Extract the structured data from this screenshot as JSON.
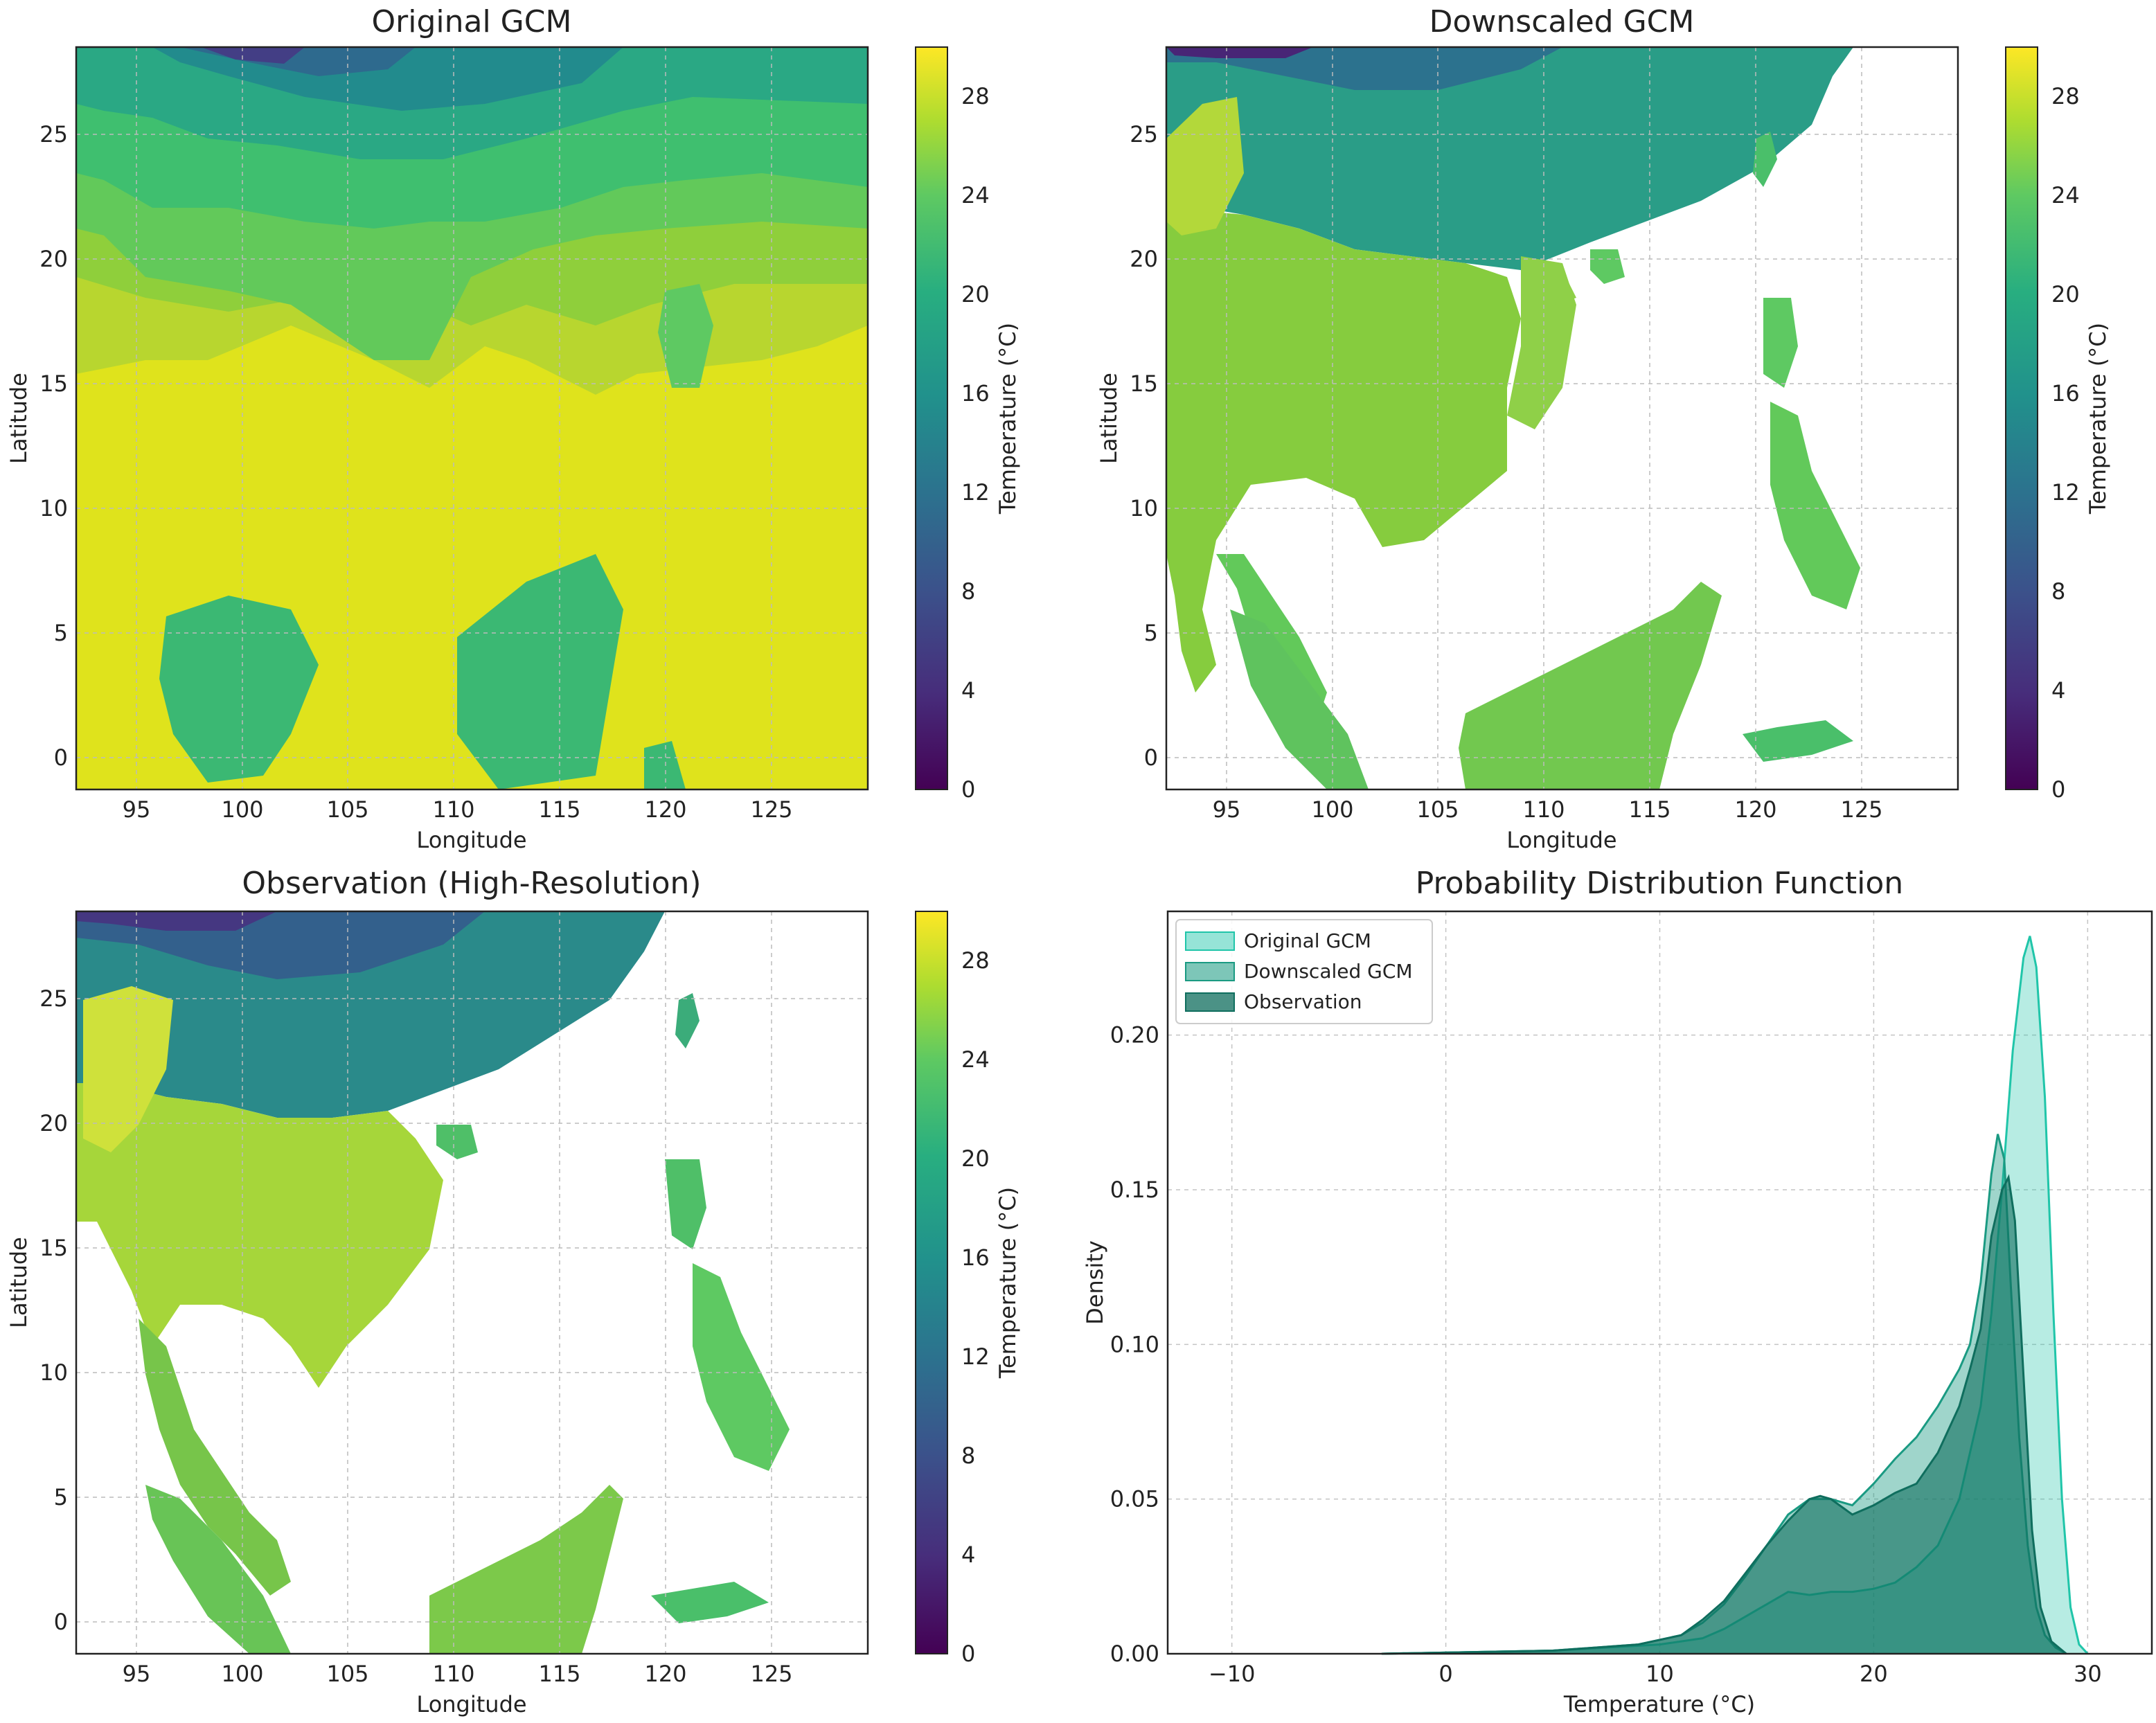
{
  "panels": {
    "original": {
      "title": "Original GCM",
      "xlabel": "Longitude",
      "ylabel": "Latitude"
    },
    "downscaled": {
      "title": "Downscaled GCM",
      "xlabel": "Longitude",
      "ylabel": "Latitude"
    },
    "observation": {
      "title": "Observation (High-Resolution)",
      "xlabel": "Longitude",
      "ylabel": "Latitude"
    }
  },
  "map_axes": {
    "xticks": [
      "95",
      "100",
      "105",
      "110",
      "115",
      "120",
      "125"
    ],
    "yticks": [
      "0",
      "5",
      "10",
      "15",
      "20",
      "25"
    ],
    "xlim": [
      92.2,
      129.8
    ],
    "ylim": [
      -1.3,
      28.5
    ]
  },
  "colorbar": {
    "label": "Temperature (°C)",
    "ticks": [
      "0",
      "4",
      "8",
      "12",
      "16",
      "20",
      "24",
      "28"
    ],
    "range": [
      0,
      30
    ],
    "colormap": "viridis"
  },
  "colors": {
    "viridis_low": "#440154",
    "viridis_mid": "#21918c",
    "viridis_high": "#fde725",
    "ocean": "#ffffff",
    "pdf_original": "#20c5a9",
    "pdf_downscaled": "#1a9a82",
    "pdf_observation": "#0f6e5e"
  },
  "chart_data": {
    "type": "area",
    "title": "Probability Distribution Function",
    "xlabel": "Temperature (°C)",
    "ylabel": "Density",
    "xlim": [
      -13,
      33
    ],
    "ylim": [
      0,
      0.24
    ],
    "xticks": [
      "−10",
      "0",
      "10",
      "20",
      "30"
    ],
    "yticks": [
      "0.00",
      "0.05",
      "0.10",
      "0.15",
      "0.20"
    ],
    "grid": true,
    "legend_position": "top-left",
    "series": [
      {
        "name": "Original GCM",
        "x": [
          -3,
          5,
          10,
          12,
          13,
          14,
          15,
          16,
          17,
          18,
          19,
          20,
          21,
          22,
          23,
          24,
          25,
          25.5,
          26,
          26.5,
          27,
          27.3,
          27.6,
          28,
          28.4,
          28.8,
          29.2,
          29.6,
          30
        ],
        "y": [
          0,
          0.001,
          0.003,
          0.005,
          0.008,
          0.012,
          0.016,
          0.02,
          0.019,
          0.02,
          0.02,
          0.021,
          0.023,
          0.028,
          0.035,
          0.05,
          0.08,
          0.11,
          0.15,
          0.195,
          0.225,
          0.232,
          0.222,
          0.18,
          0.11,
          0.05,
          0.015,
          0.003,
          0
        ]
      },
      {
        "name": "Downscaled GCM",
        "x": [
          -3,
          5,
          9,
          11,
          12,
          13,
          14,
          15,
          16,
          17,
          18,
          19,
          20,
          21,
          22,
          23,
          24,
          24.5,
          25,
          25.5,
          25.8,
          26.1,
          26.4,
          26.8,
          27.2,
          27.6,
          28,
          28.5,
          29
        ],
        "y": [
          0,
          0.001,
          0.003,
          0.006,
          0.01,
          0.016,
          0.025,
          0.035,
          0.045,
          0.05,
          0.05,
          0.048,
          0.055,
          0.063,
          0.07,
          0.08,
          0.092,
          0.1,
          0.12,
          0.155,
          0.168,
          0.16,
          0.12,
          0.07,
          0.035,
          0.015,
          0.006,
          0.002,
          0
        ]
      },
      {
        "name": "Observation",
        "x": [
          -3,
          5,
          9,
          11,
          12,
          13,
          14,
          15,
          16,
          17,
          17.5,
          18,
          19,
          20,
          21,
          22,
          23,
          24,
          24.5,
          25,
          25.5,
          26,
          26.3,
          26.6,
          27,
          27.4,
          27.8,
          28.3,
          29
        ],
        "y": [
          0,
          0.001,
          0.003,
          0.006,
          0.011,
          0.017,
          0.026,
          0.035,
          0.043,
          0.05,
          0.051,
          0.05,
          0.045,
          0.048,
          0.052,
          0.055,
          0.065,
          0.08,
          0.092,
          0.105,
          0.135,
          0.15,
          0.154,
          0.14,
          0.09,
          0.04,
          0.015,
          0.004,
          0
        ]
      }
    ]
  }
}
